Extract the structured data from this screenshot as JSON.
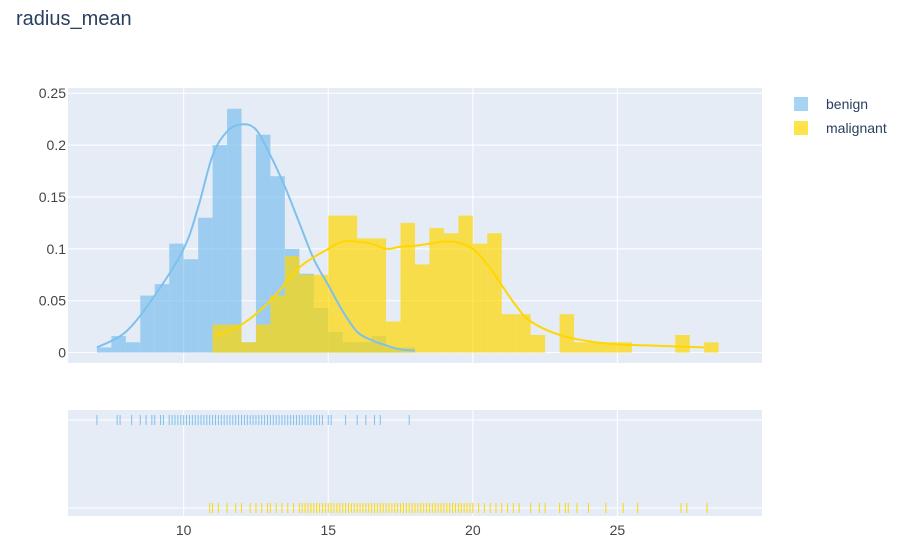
{
  "chart_data": {
    "type": "histogram",
    "title": "radius_mean",
    "x_ticks": [
      10,
      15,
      20,
      25
    ],
    "y_ticks": [
      0,
      0.05,
      0.1,
      0.15,
      0.2,
      0.25
    ],
    "y_tick_labels": [
      "0",
      "0.05",
      "0.1",
      "0.15",
      "0.2",
      "0.25"
    ],
    "xlim": [
      6.0,
      30.0
    ],
    "ylim": [
      -0.01,
      0.255
    ],
    "grid": true,
    "legend_position": "top-right",
    "colors": {
      "benign": "#7ec0ee",
      "malignant": "#ffd700",
      "plot_bg": "#e5ecf6"
    },
    "series": [
      {
        "name": "benign",
        "bin_width": 0.5,
        "bins": [
          [
            7.0,
            0.005
          ],
          [
            7.5,
            0.016
          ],
          [
            8.0,
            0.01
          ],
          [
            8.5,
            0.055
          ],
          [
            9.0,
            0.066
          ],
          [
            9.5,
            0.105
          ],
          [
            10.0,
            0.09
          ],
          [
            10.5,
            0.13
          ],
          [
            11.0,
            0.2
          ],
          [
            11.5,
            0.235
          ],
          [
            12.0,
            0.01
          ],
          [
            12.5,
            0.21
          ],
          [
            13.0,
            0.17
          ],
          [
            13.5,
            0.1
          ],
          [
            14.0,
            0.076
          ],
          [
            14.5,
            0.043
          ],
          [
            15.0,
            0.02
          ],
          [
            15.5,
            0.01
          ],
          [
            16.0,
            0.01
          ],
          [
            16.5,
            0.016
          ],
          [
            17.0,
            0.005
          ],
          [
            17.5,
            0.005
          ]
        ],
        "kde": [
          [
            7.0,
            0.005
          ],
          [
            8.0,
            0.02
          ],
          [
            9.0,
            0.055
          ],
          [
            10.0,
            0.1
          ],
          [
            10.5,
            0.14
          ],
          [
            11.0,
            0.19
          ],
          [
            11.5,
            0.213
          ],
          [
            12.0,
            0.22
          ],
          [
            12.5,
            0.215
          ],
          [
            13.0,
            0.19
          ],
          [
            13.5,
            0.16
          ],
          [
            14.0,
            0.125
          ],
          [
            14.5,
            0.09
          ],
          [
            15.0,
            0.065
          ],
          [
            15.5,
            0.04
          ],
          [
            16.0,
            0.02
          ],
          [
            16.5,
            0.012
          ],
          [
            17.0,
            0.007
          ],
          [
            17.5,
            0.003
          ],
          [
            18.0,
            0.002
          ]
        ],
        "rug": [
          7.0,
          7.7,
          7.8,
          8.2,
          8.5,
          8.7,
          8.9,
          9.0,
          9.2,
          9.3,
          9.5,
          9.6,
          9.7,
          9.8,
          9.9,
          10.0,
          10.1,
          10.2,
          10.3,
          10.4,
          10.5,
          10.6,
          10.7,
          10.8,
          10.9,
          11.0,
          11.1,
          11.2,
          11.3,
          11.4,
          11.5,
          11.6,
          11.7,
          11.8,
          11.9,
          12.0,
          12.1,
          12.2,
          12.3,
          12.4,
          12.5,
          12.6,
          12.7,
          12.8,
          12.9,
          13.0,
          13.1,
          13.2,
          13.3,
          13.4,
          13.5,
          13.6,
          13.7,
          13.8,
          13.9,
          14.0,
          14.1,
          14.2,
          14.3,
          14.4,
          14.5,
          14.6,
          14.7,
          14.8,
          15.0,
          15.1,
          15.6,
          16.0,
          16.3,
          16.6,
          16.8,
          17.8
        ]
      },
      {
        "name": "malignant",
        "bin_width": 0.5,
        "bins": [
          [
            11.0,
            0.027
          ],
          [
            11.5,
            0.027
          ],
          [
            12.0,
            0.01
          ],
          [
            12.5,
            0.027
          ],
          [
            13.0,
            0.055
          ],
          [
            13.5,
            0.093
          ],
          [
            14.0,
            0.075
          ],
          [
            14.5,
            0.075
          ],
          [
            15.0,
            0.132
          ],
          [
            15.5,
            0.132
          ],
          [
            16.0,
            0.11
          ],
          [
            16.5,
            0.11
          ],
          [
            17.0,
            0.03
          ],
          [
            17.5,
            0.125
          ],
          [
            18.0,
            0.085
          ],
          [
            18.5,
            0.12
          ],
          [
            19.0,
            0.115
          ],
          [
            19.5,
            0.132
          ],
          [
            20.0,
            0.105
          ],
          [
            20.5,
            0.115
          ],
          [
            21.0,
            0.037
          ],
          [
            21.5,
            0.037
          ],
          [
            22.0,
            0.017
          ],
          [
            22.5,
            0.0
          ],
          [
            23.0,
            0.037
          ],
          [
            23.5,
            0.01
          ],
          [
            24.0,
            0.01
          ],
          [
            24.5,
            0.01
          ],
          [
            25.0,
            0.01
          ],
          [
            25.5,
            0.0
          ],
          [
            26.0,
            0.0
          ],
          [
            26.5,
            0.0
          ],
          [
            27.0,
            0.017
          ],
          [
            27.5,
            0.0
          ],
          [
            28.0,
            0.01
          ]
        ],
        "kde": [
          [
            11.0,
            0.015
          ],
          [
            12.0,
            0.027
          ],
          [
            13.0,
            0.05
          ],
          [
            14.0,
            0.082
          ],
          [
            15.0,
            0.1
          ],
          [
            15.5,
            0.107
          ],
          [
            16.0,
            0.107
          ],
          [
            16.5,
            0.105
          ],
          [
            17.0,
            0.1
          ],
          [
            17.5,
            0.102
          ],
          [
            18.0,
            0.103
          ],
          [
            18.5,
            0.105
          ],
          [
            19.0,
            0.107
          ],
          [
            19.5,
            0.106
          ],
          [
            20.0,
            0.1
          ],
          [
            20.5,
            0.085
          ],
          [
            21.0,
            0.065
          ],
          [
            21.5,
            0.045
          ],
          [
            22.0,
            0.03
          ],
          [
            23.0,
            0.017
          ],
          [
            24.0,
            0.011
          ],
          [
            25.0,
            0.008
          ],
          [
            26.0,
            0.007
          ],
          [
            27.0,
            0.006
          ],
          [
            28.0,
            0.005
          ]
        ],
        "rug": [
          10.9,
          11.0,
          11.2,
          11.5,
          11.8,
          12.0,
          12.3,
          12.5,
          12.7,
          12.9,
          13.0,
          13.2,
          13.4,
          13.6,
          13.8,
          14.0,
          14.1,
          14.2,
          14.3,
          14.4,
          14.5,
          14.6,
          14.7,
          14.8,
          14.9,
          15.0,
          15.1,
          15.2,
          15.3,
          15.4,
          15.5,
          15.6,
          15.7,
          15.8,
          15.9,
          16.0,
          16.1,
          16.2,
          16.3,
          16.4,
          16.5,
          16.6,
          16.7,
          16.8,
          16.9,
          17.0,
          17.1,
          17.2,
          17.3,
          17.4,
          17.5,
          17.6,
          17.7,
          17.8,
          17.9,
          18.0,
          18.1,
          18.2,
          18.3,
          18.4,
          18.5,
          18.6,
          18.7,
          18.8,
          18.9,
          19.0,
          19.1,
          19.2,
          19.3,
          19.4,
          19.5,
          19.6,
          19.7,
          19.8,
          19.9,
          20.0,
          20.2,
          20.4,
          20.6,
          20.8,
          21.0,
          21.2,
          21.4,
          21.6,
          22.0,
          22.3,
          22.5,
          23.0,
          23.2,
          23.3,
          23.6,
          24.0,
          24.6,
          25.2,
          25.7,
          27.2,
          27.4,
          28.1
        ]
      }
    ]
  }
}
